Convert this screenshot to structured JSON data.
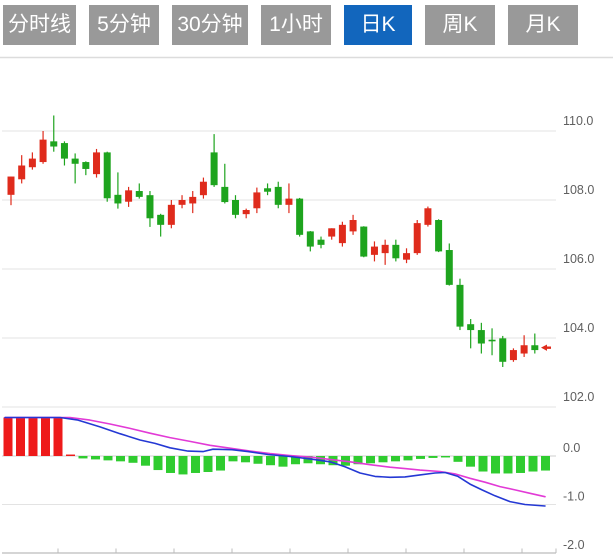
{
  "tabs": {
    "items": [
      {
        "label": "分时线",
        "active": false
      },
      {
        "label": "5分钟",
        "active": false
      },
      {
        "label": "30分钟",
        "active": false
      },
      {
        "label": "1小时",
        "active": false
      },
      {
        "label": "日K",
        "active": true
      },
      {
        "label": "周K",
        "active": false
      },
      {
        "label": "月K",
        "active": false
      }
    ]
  },
  "colors": {
    "candle_up": "#df2b1c",
    "candle_down": "#1ea41e",
    "hist_up": "#ee1a1a",
    "hist_down": "#2fcc2f",
    "dif_line": "#2438d4",
    "dea_line": "#e23ad6",
    "grid": "#e3e3e3",
    "zero_line": "#cfcfcf",
    "axis": "#bcbcbc",
    "label": "#5f5f5f",
    "top_border": "#dcdcdc",
    "tab_bg": "#999999",
    "tab_active_bg": "#1266bd",
    "tab_text": "#ffffff",
    "marker": "#df2b1c"
  },
  "chart_data": {
    "type": "candlestick",
    "title": "",
    "legend_position": "none",
    "grid": true,
    "price_axis": {
      "side": "right",
      "ticks": [
        110.0,
        108.0,
        106.0,
        104.0,
        102.0
      ],
      "labels": [
        "110.0",
        "108.0",
        "106.0",
        "104.0",
        "102.0"
      ],
      "range": [
        101.8,
        112.2
      ]
    },
    "macd_axis": {
      "side": "right",
      "ticks": [
        0.0,
        -1.0,
        -2.0
      ],
      "labels": [
        "0.0",
        "-1.0",
        "-2.0"
      ],
      "range": [
        0.8,
        -2.0
      ]
    },
    "candles_ohlc": [
      [
        108.15,
        108.68,
        107.85,
        108.68
      ],
      [
        108.6,
        109.3,
        108.48,
        109.0
      ],
      [
        108.95,
        109.38,
        108.88,
        109.2
      ],
      [
        109.1,
        110.0,
        109.05,
        109.75
      ],
      [
        109.7,
        110.45,
        109.4,
        109.55
      ],
      [
        109.65,
        109.7,
        109.0,
        109.2
      ],
      [
        109.2,
        109.35,
        108.48,
        109.05
      ],
      [
        109.1,
        109.12,
        108.72,
        108.9
      ],
      [
        108.75,
        109.48,
        108.65,
        109.38
      ],
      [
        109.38,
        109.4,
        107.95,
        108.05
      ],
      [
        108.15,
        108.8,
        107.75,
        107.9
      ],
      [
        107.95,
        108.38,
        107.8,
        108.28
      ],
      [
        108.26,
        108.48,
        108.04,
        108.09
      ],
      [
        108.14,
        108.26,
        107.22,
        107.47
      ],
      [
        107.57,
        107.6,
        106.94,
        107.28
      ],
      [
        107.28,
        108.0,
        107.18,
        107.86
      ],
      [
        107.86,
        108.14,
        107.76,
        108.0
      ],
      [
        107.9,
        108.26,
        107.62,
        108.09
      ],
      [
        108.14,
        108.65,
        108.04,
        108.53
      ],
      [
        109.38,
        109.91,
        108.38,
        108.43
      ],
      [
        108.38,
        109.05,
        107.9,
        107.94
      ],
      [
        108.0,
        108.14,
        107.47,
        107.57
      ],
      [
        107.59,
        107.75,
        107.47,
        107.71
      ],
      [
        107.76,
        108.36,
        107.62,
        108.22
      ],
      [
        108.34,
        108.48,
        108.14,
        108.24
      ],
      [
        108.38,
        108.53,
        107.76,
        107.86
      ],
      [
        107.86,
        108.48,
        107.62,
        108.04
      ],
      [
        108.04,
        108.06,
        106.94,
        106.99
      ],
      [
        107.09,
        107.1,
        106.51,
        106.65
      ],
      [
        106.85,
        106.94,
        106.6,
        106.7
      ],
      [
        106.94,
        107.18,
        106.85,
        107.18
      ],
      [
        106.75,
        107.37,
        106.65,
        107.28
      ],
      [
        107.09,
        107.57,
        106.99,
        107.42
      ],
      [
        107.23,
        107.24,
        106.34,
        106.36
      ],
      [
        106.41,
        106.8,
        106.22,
        106.65
      ],
      [
        106.46,
        106.85,
        106.12,
        106.7
      ],
      [
        106.7,
        106.85,
        106.22,
        106.31
      ],
      [
        106.27,
        106.6,
        106.17,
        106.46
      ],
      [
        106.46,
        107.42,
        106.41,
        107.33
      ],
      [
        107.28,
        107.81,
        107.23,
        107.76
      ],
      [
        107.42,
        107.44,
        106.49,
        106.51
      ],
      [
        106.55,
        106.74,
        105.52,
        105.54
      ],
      [
        105.54,
        105.72,
        104.23,
        104.33
      ],
      [
        104.4,
        104.55,
        103.7,
        104.23
      ],
      [
        104.23,
        104.44,
        103.55,
        103.84
      ],
      [
        103.95,
        104.28,
        103.5,
        103.92
      ],
      [
        103.99,
        104.06,
        103.16,
        103.31
      ],
      [
        103.36,
        103.7,
        103.31,
        103.65
      ],
      [
        103.55,
        104.08,
        103.45,
        103.79
      ],
      [
        103.79,
        104.13,
        103.55,
        103.65
      ]
    ],
    "last_price_marker": 103.72,
    "macd": {
      "histogram": [
        0.85,
        0.85,
        0.85,
        0.85,
        0.85,
        0.03,
        -0.05,
        -0.07,
        -0.09,
        -0.11,
        -0.14,
        -0.2,
        -0.29,
        -0.35,
        -0.38,
        -0.35,
        -0.33,
        -0.3,
        -0.11,
        -0.13,
        -0.16,
        -0.19,
        -0.22,
        -0.17,
        -0.15,
        -0.17,
        -0.19,
        -0.2,
        -0.17,
        -0.15,
        -0.13,
        -0.11,
        -0.09,
        -0.06,
        -0.04,
        -0.03,
        -0.12,
        -0.22,
        -0.32,
        -0.36,
        -0.36,
        -0.35,
        -0.32,
        -0.3
      ],
      "dif": [
        [
          5,
          0.8
        ],
        [
          60,
          0.8
        ],
        [
          78,
          0.74
        ],
        [
          100,
          0.6
        ],
        [
          120,
          0.46
        ],
        [
          140,
          0.33
        ],
        [
          155,
          0.26
        ],
        [
          170,
          0.17
        ],
        [
          188,
          0.1
        ],
        [
          203,
          0.09
        ],
        [
          213,
          0.14
        ],
        [
          232,
          0.13
        ],
        [
          248,
          0.09
        ],
        [
          268,
          0.03
        ],
        [
          290,
          -0.01
        ],
        [
          310,
          -0.06
        ],
        [
          330,
          -0.12
        ],
        [
          345,
          -0.22
        ],
        [
          360,
          -0.35
        ],
        [
          375,
          -0.42
        ],
        [
          390,
          -0.44
        ],
        [
          405,
          -0.43
        ],
        [
          420,
          -0.39
        ],
        [
          435,
          -0.35
        ],
        [
          445,
          -0.34
        ],
        [
          458,
          -0.42
        ],
        [
          470,
          -0.58
        ],
        [
          482,
          -0.7
        ],
        [
          495,
          -0.82
        ],
        [
          510,
          -0.94
        ],
        [
          525,
          -1.0
        ],
        [
          545,
          -1.03
        ]
      ],
      "dea": [
        [
          5,
          0.82
        ],
        [
          70,
          0.82
        ],
        [
          90,
          0.74
        ],
        [
          110,
          0.66
        ],
        [
          130,
          0.57
        ],
        [
          150,
          0.47
        ],
        [
          170,
          0.38
        ],
        [
          190,
          0.3
        ],
        [
          210,
          0.22
        ],
        [
          230,
          0.16
        ],
        [
          250,
          0.1
        ],
        [
          270,
          0.05
        ],
        [
          290,
          0.01
        ],
        [
          310,
          -0.02
        ],
        [
          330,
          -0.07
        ],
        [
          350,
          -0.12
        ],
        [
          370,
          -0.18
        ],
        [
          390,
          -0.23
        ],
        [
          405,
          -0.26
        ],
        [
          420,
          -0.29
        ],
        [
          440,
          -0.32
        ],
        [
          455,
          -0.37
        ],
        [
          470,
          -0.46
        ],
        [
          485,
          -0.54
        ],
        [
          500,
          -0.63
        ],
        [
          515,
          -0.7
        ],
        [
          530,
          -0.77
        ],
        [
          545,
          -0.84
        ]
      ]
    }
  }
}
